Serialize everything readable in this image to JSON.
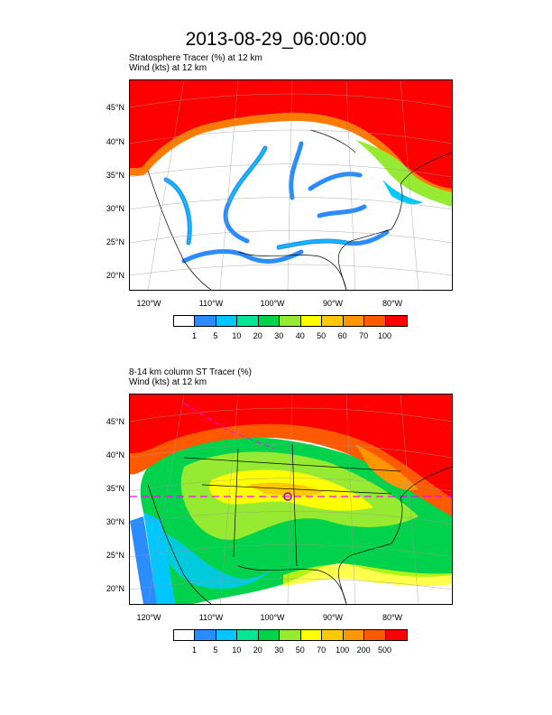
{
  "title": "2013-08-29_06:00:00",
  "panel1": {
    "line1": "Stratosphere Tracer   (%)    at   12 km",
    "line2": "Wind   (kts)    at   12 km",
    "colors": [
      "#ffffff",
      "#2b8cff",
      "#00c8ff",
      "#00e696",
      "#00d24b",
      "#96eb32",
      "#ffff00",
      "#ffc800",
      "#ff9600",
      "#ff5a00",
      "#ff0000"
    ],
    "levels": [
      "1",
      "5",
      "10",
      "20",
      "30",
      "40",
      "50",
      "60",
      "70",
      "100"
    ]
  },
  "panel2": {
    "line1": "8-14 km column ST Tracer   (%)",
    "line2": "Wind   (kts)    at   12 km",
    "colors": [
      "#ffffff",
      "#2b8cff",
      "#00c8ff",
      "#00e696",
      "#00d24b",
      "#96eb32",
      "#ffff00",
      "#ffc800",
      "#ff9600",
      "#ff5a00",
      "#ff0000"
    ],
    "levels": [
      "1",
      "5",
      "10",
      "20",
      "30",
      "50",
      "70",
      "100",
      "200",
      "500"
    ]
  },
  "lat_labels": [
    "45°N",
    "40°N",
    "35°N",
    "30°N",
    "25°N",
    "20°N"
  ],
  "lon_labels": [
    "120°W",
    "110°W",
    "100°W",
    "90°W",
    "80°W"
  ]
}
